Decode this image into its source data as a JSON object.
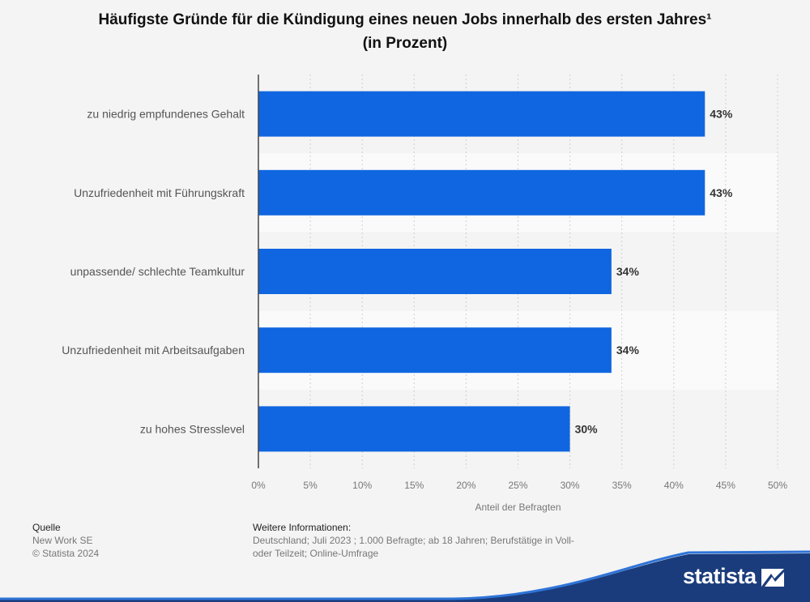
{
  "title_line1": "Häufigste Gründe für die Kündigung eines neuen Jobs innerhalb des ersten Jahres¹",
  "title_line2": "(in Prozent)",
  "chart_data": {
    "type": "bar",
    "orientation": "horizontal",
    "categories": [
      "zu niedrig empfundenes Gehalt",
      "Unzufriedenheit mit Führungskraft",
      "unpassende/ schlechte Teamkultur",
      "Unzufriedenheit mit Arbeitsaufgaben",
      "zu hohes Stresslevel"
    ],
    "values": [
      43,
      43,
      34,
      34,
      30
    ],
    "value_labels": [
      "43%",
      "43%",
      "34%",
      "34%",
      "30%"
    ],
    "xlim": [
      0,
      50
    ],
    "xticks": [
      0,
      5,
      10,
      15,
      20,
      25,
      30,
      35,
      40,
      45,
      50
    ],
    "xtick_labels": [
      "0%",
      "5%",
      "10%",
      "15%",
      "20%",
      "25%",
      "30%",
      "35%",
      "40%",
      "45%",
      "50%"
    ],
    "xlabel": "Anteil der Befragten",
    "grid": true,
    "bar_color": "#1066e0"
  },
  "footer": {
    "source_heading": "Quelle",
    "source_lines": [
      "New Work SE",
      "© Statista 2024"
    ],
    "info_heading": "Weitere Informationen:",
    "info_lines": [
      "Deutschland; Juli 2023 ; 1.000 Befragte; ab 18 Jahren; Berufstätige in Voll-",
      "oder Teilzeit; Online-Umfrage"
    ]
  },
  "brand": {
    "name": "statista",
    "color": "#1a3c7c"
  }
}
